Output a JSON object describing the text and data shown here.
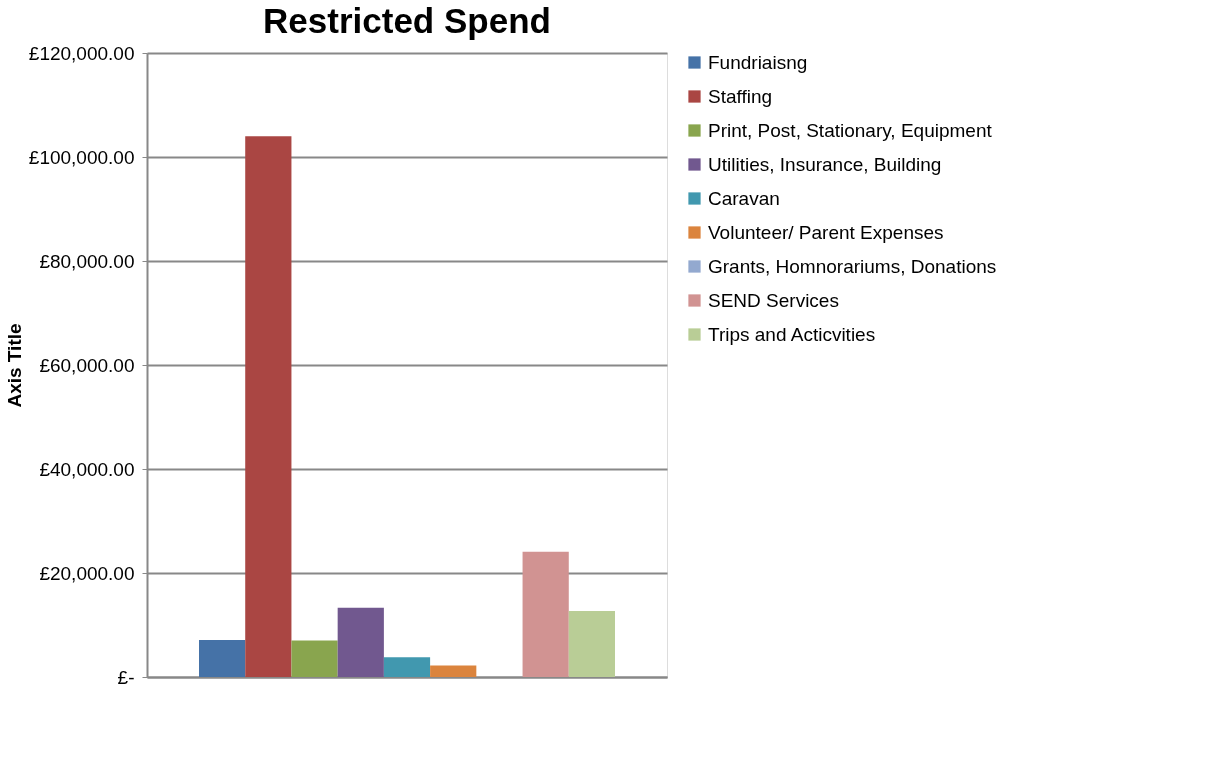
{
  "chart_data": {
    "type": "bar",
    "title": "Restricted Spend",
    "ylabel": "Axis Title",
    "categories": [
      null
    ],
    "series": [
      {
        "name": "Fundriaisng",
        "color": "#4572a7",
        "values": [
          7100
        ]
      },
      {
        "name": "Staffing",
        "color": "#aa4643",
        "values": [
          104000
        ]
      },
      {
        "name": "Print, Post, Stationary, Equipment",
        "color": "#89a54e",
        "values": [
          7000
        ]
      },
      {
        "name": "Utilities, Insurance, Building",
        "color": "#71588f",
        "values": [
          13300
        ]
      },
      {
        "name": "Caravan",
        "color": "#4198af",
        "values": [
          3800
        ]
      },
      {
        "name": "Volunteer/ Parent Expenses",
        "color": "#db843d",
        "values": [
          2200
        ]
      },
      {
        "name": "Grants, Homnorariums, Donations",
        "color": "#93a9cf",
        "values": [
          0
        ]
      },
      {
        "name": "SEND Services",
        "color": "#d19392",
        "values": [
          24100
        ]
      },
      {
        "name": "Trips and Acticvities",
        "color": "#b9cd96",
        "values": [
          12700
        ]
      }
    ],
    "ylim": [
      0,
      120000
    ],
    "yticks": [
      {
        "value": 0,
        "label": "£-"
      },
      {
        "value": 20000,
        "label": "£20,000.00"
      },
      {
        "value": 40000,
        "label": "£40,000.00"
      },
      {
        "value": 60000,
        "label": "£60,000.00"
      },
      {
        "value": 80000,
        "label": "£80,000.00"
      },
      {
        "value": 100000,
        "label": "£100,000.00"
      },
      {
        "value": 120000,
        "label": "£120,000.00"
      }
    ],
    "grid": "y",
    "legend": "right"
  }
}
